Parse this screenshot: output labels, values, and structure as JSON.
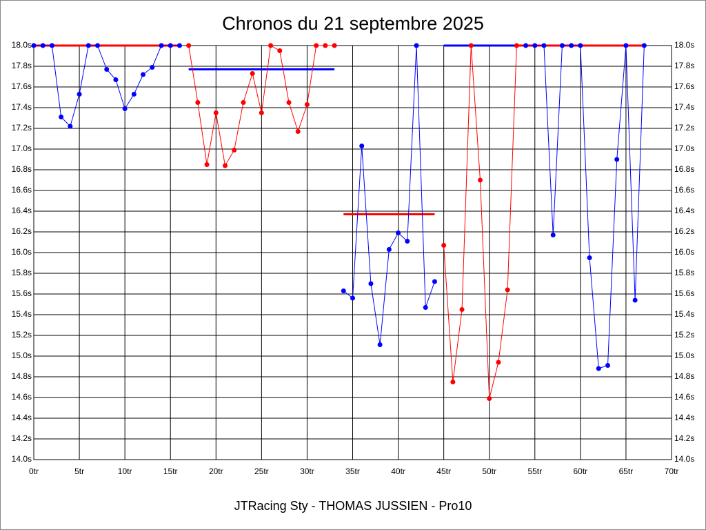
{
  "chart_data": {
    "type": "line",
    "title": "Chronos du 21 septembre 2025",
    "footer": "JTRacing Sty - THOMAS JUSSIEN - Pro10",
    "grid": true,
    "xlim": [
      0,
      70
    ],
    "ylim": [
      14.0,
      18.0
    ],
    "xticks": [
      {
        "value": 0,
        "label": "0tr"
      },
      {
        "value": 5,
        "label": "5tr"
      },
      {
        "value": 10,
        "label": "10tr"
      },
      {
        "value": 15,
        "label": "15tr"
      },
      {
        "value": 20,
        "label": "20tr"
      },
      {
        "value": 25,
        "label": "25tr"
      },
      {
        "value": 30,
        "label": "30tr"
      },
      {
        "value": 35,
        "label": "35tr"
      },
      {
        "value": 40,
        "label": "40tr"
      },
      {
        "value": 45,
        "label": "45tr"
      },
      {
        "value": 50,
        "label": "50tr"
      },
      {
        "value": 55,
        "label": "55tr"
      },
      {
        "value": 60,
        "label": "60tr"
      },
      {
        "value": 65,
        "label": "65tr"
      },
      {
        "value": 70,
        "label": "70tr"
      }
    ],
    "yticks": [
      {
        "value": 14.0,
        "label": "14.0s"
      },
      {
        "value": 14.2,
        "label": "14.2s"
      },
      {
        "value": 14.4,
        "label": "14.4s"
      },
      {
        "value": 14.6,
        "label": "14.6s"
      },
      {
        "value": 14.8,
        "label": "14.8s"
      },
      {
        "value": 15.0,
        "label": "15.0s"
      },
      {
        "value": 15.2,
        "label": "15.2s"
      },
      {
        "value": 15.4,
        "label": "15.4s"
      },
      {
        "value": 15.6,
        "label": "15.6s"
      },
      {
        "value": 15.8,
        "label": "15.8s"
      },
      {
        "value": 16.0,
        "label": "16.0s"
      },
      {
        "value": 16.2,
        "label": "16.2s"
      },
      {
        "value": 16.4,
        "label": "16.4s"
      },
      {
        "value": 16.6,
        "label": "16.6s"
      },
      {
        "value": 16.8,
        "label": "16.8s"
      },
      {
        "value": 17.0,
        "label": "17.0s"
      },
      {
        "value": 17.2,
        "label": "17.2s"
      },
      {
        "value": 17.4,
        "label": "17.4s"
      },
      {
        "value": 17.6,
        "label": "17.6s"
      },
      {
        "value": 17.8,
        "label": "17.8s"
      },
      {
        "value": 18.0,
        "label": "18.0s"
      }
    ],
    "series": [
      {
        "color": "#0000ff",
        "x": [
          0,
          1,
          2,
          3,
          4,
          5,
          6,
          7,
          8,
          9,
          10,
          11,
          12,
          13,
          14,
          15,
          16
        ],
        "values": [
          18.0,
          18.0,
          18.0,
          17.31,
          17.22,
          17.53,
          18.0,
          18.0,
          17.77,
          17.67,
          17.39,
          17.53,
          17.72,
          17.79,
          18.0,
          18.0,
          18.0
        ]
      },
      {
        "color": "#ff0000",
        "x": [
          17,
          18,
          19,
          20,
          21,
          22,
          23,
          24,
          25,
          26,
          27,
          28,
          29,
          30,
          31,
          32,
          33
        ],
        "values": [
          18.0,
          17.45,
          16.85,
          17.35,
          16.84,
          16.99,
          17.45,
          17.73,
          17.35,
          18.0,
          17.95,
          17.45,
          17.17,
          17.43,
          18.0,
          18.0,
          18.0
        ]
      },
      {
        "color": "#0000ff",
        "x": [
          34,
          35,
          36,
          37,
          38,
          39,
          40,
          41,
          42,
          43,
          44
        ],
        "values": [
          15.63,
          15.56,
          17.03,
          15.7,
          15.11,
          16.03,
          16.19,
          16.11,
          18.0,
          15.47,
          15.72
        ]
      },
      {
        "color": "#ff0000",
        "x": [
          45,
          46,
          47,
          48,
          49,
          50,
          51,
          52,
          53
        ],
        "values": [
          16.07,
          14.75,
          15.45,
          18.0,
          16.7,
          14.59,
          14.94,
          15.64,
          18.0
        ]
      },
      {
        "color": "#0000ff",
        "x": [
          54,
          55,
          56,
          57,
          58,
          59,
          60,
          61,
          62,
          63,
          64,
          65,
          66,
          67
        ],
        "values": [
          18.0,
          18.0,
          18.0,
          16.17,
          18.0,
          18.0,
          18.0,
          15.95,
          14.88,
          14.91,
          16.9,
          18.0,
          15.54,
          18.0
        ]
      }
    ],
    "reference_lines": [
      {
        "color": "#ff0000",
        "x": [
          0,
          16
        ],
        "value": 18.0
      },
      {
        "color": "#0000ff",
        "x": [
          17,
          33
        ],
        "value": 17.77
      },
      {
        "color": "#ff0000",
        "x": [
          34,
          44
        ],
        "value": 16.37
      },
      {
        "color": "#0000ff",
        "x": [
          45,
          53
        ],
        "value": 18.0
      },
      {
        "color": "#ff0000",
        "x": [
          53,
          67
        ],
        "value": 18.0
      }
    ]
  }
}
